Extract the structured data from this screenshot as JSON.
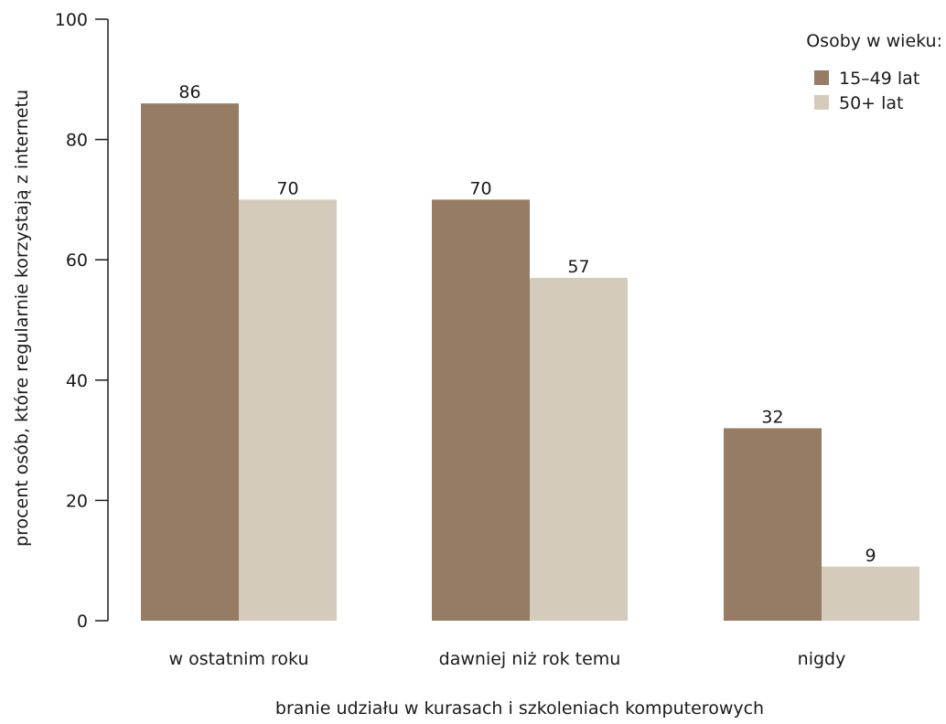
{
  "chart_data": {
    "type": "bar",
    "title": "",
    "xlabel": "branie udziału w kurasach i szkoleniach komputerowych",
    "ylabel": "procent osób, które regularnie korzystają z internetu",
    "ylim": [
      0,
      100
    ],
    "yticks": [
      "0",
      "20",
      "40",
      "60",
      "80",
      "100"
    ],
    "categories": [
      "w ostatnim roku",
      "dawniej niż rok temu",
      "nigdy"
    ],
    "legend_title": "Osoby w wieku:",
    "legend_position": "top-right",
    "grid": false,
    "series": [
      {
        "name": "15–49 lat",
        "color": "#967c64",
        "values": [
          86,
          70,
          32
        ]
      },
      {
        "name": "50+ lat",
        "color": "#d4cbbd",
        "values": [
          70,
          57,
          9
        ]
      }
    ]
  }
}
